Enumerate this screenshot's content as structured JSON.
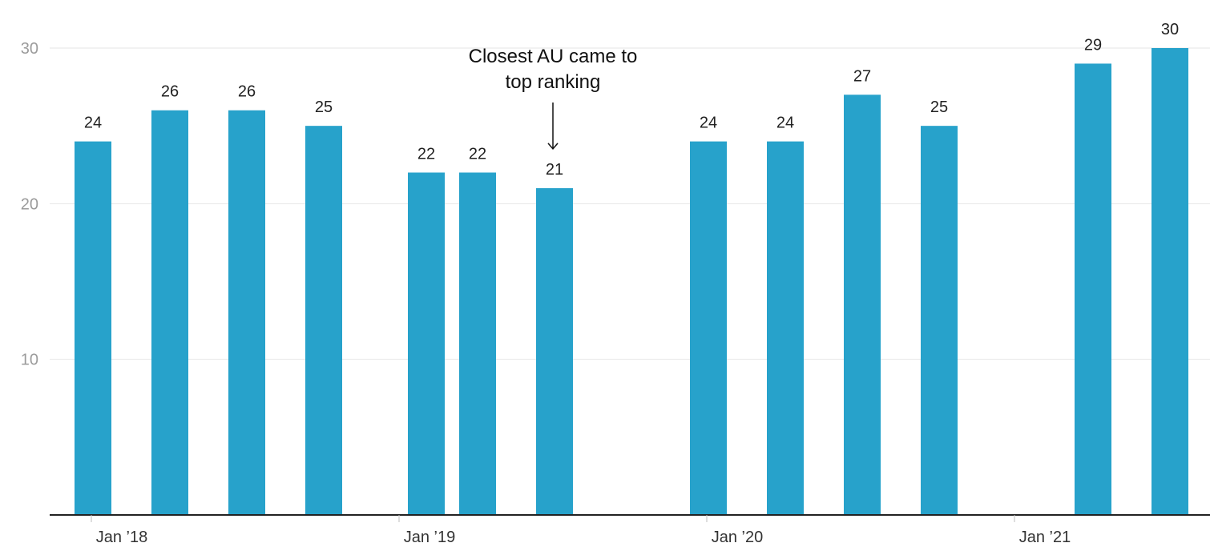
{
  "chart_data": {
    "type": "bar",
    "x": [
      "2018-01",
      "2018-04",
      "2018-07",
      "2018-10",
      "2019-02",
      "2019-04",
      "2019-07",
      "2020-01",
      "2020-04",
      "2020-07",
      "2020-10",
      "2021-04",
      "2021-07"
    ],
    "values": [
      24,
      26,
      26,
      25,
      22,
      22,
      21,
      24,
      24,
      27,
      25,
      29,
      30
    ],
    "xticks": [
      {
        "date": "2018-01",
        "label": "Jan ’18"
      },
      {
        "date": "2019-01",
        "label": "Jan ’19"
      },
      {
        "date": "2020-01",
        "label": "Jan ’20"
      },
      {
        "date": "2021-01",
        "label": "Jan ’21"
      }
    ],
    "yticks": [
      10,
      20,
      30
    ],
    "ylim": [
      0,
      30
    ],
    "grid": true,
    "bar_color": "#27a2cb",
    "annotation": {
      "lines": [
        "Closest AU came to",
        "top ranking"
      ],
      "target_index": 6
    }
  }
}
